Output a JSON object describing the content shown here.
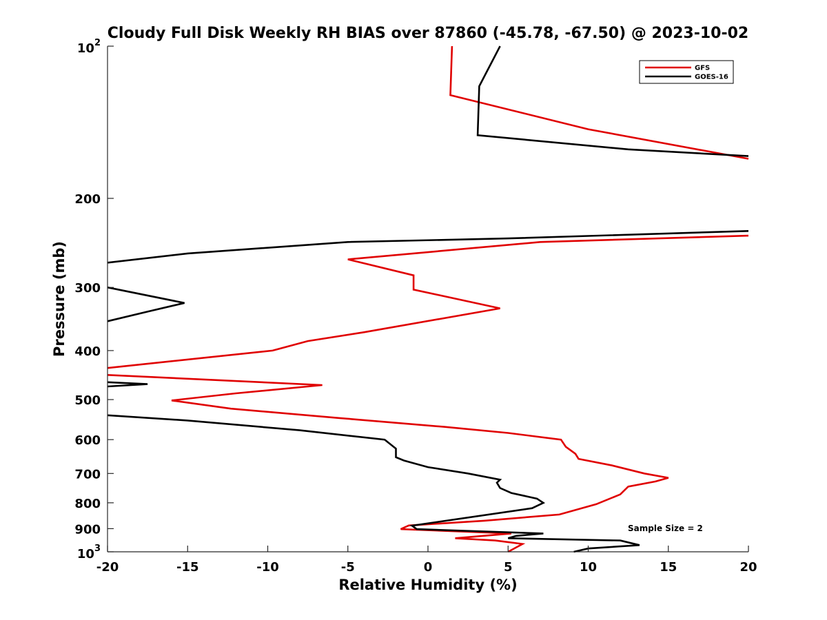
{
  "chart_data": {
    "type": "line",
    "title": "Cloudy Full Disk Weekly RH BIAS over 87860 (-45.78, -67.50) @ 2023-10-02",
    "xlabel": "Relative Humidity (%)",
    "ylabel": "Pressure (mb)",
    "xlim": [
      -20,
      20
    ],
    "ylim": [
      100,
      1000
    ],
    "y_scale": "log",
    "y_reversed": true,
    "grid": false,
    "legend_position": "top-right",
    "x_ticks": [
      -20,
      -15,
      -10,
      -5,
      0,
      5,
      10,
      15,
      20
    ],
    "x_tick_labels": [
      "-20",
      "-15",
      "-10",
      "-5",
      "0",
      "5",
      "10",
      "15",
      "20"
    ],
    "y_ticks": [
      {
        "value": 100,
        "base": "10",
        "exp": "2"
      },
      {
        "value": 200,
        "label": "200"
      },
      {
        "value": 300,
        "label": "300"
      },
      {
        "value": 400,
        "label": "400"
      },
      {
        "value": 500,
        "label": "500"
      },
      {
        "value": 600,
        "label": "600"
      },
      {
        "value": 700,
        "label": "700"
      },
      {
        "value": 800,
        "label": "800"
      },
      {
        "value": 900,
        "label": "900"
      },
      {
        "value": 1000,
        "base": "10",
        "exp": "3"
      }
    ],
    "annotation": "Sample Size = 2",
    "series": [
      {
        "name": "GFS",
        "color": "#e00000",
        "points": [
          [
            1.5,
            100
          ],
          [
            1.4,
            125
          ],
          [
            10,
            146
          ],
          [
            20,
            167
          ],
          [
            null,
            175
          ],
          [
            20,
            237
          ],
          [
            7,
            244
          ],
          [
            -5,
            264
          ],
          [
            -0.9,
            284
          ],
          [
            -0.9,
            303
          ],
          [
            4.5,
            330
          ],
          [
            -4,
            368
          ],
          [
            -7.5,
            383
          ],
          [
            -9.7,
            400
          ],
          [
            -20,
            433
          ],
          [
            null,
            440
          ],
          [
            -20,
            447
          ],
          [
            -6.6,
            468
          ],
          [
            -12,
            486
          ],
          [
            -16,
            502
          ],
          [
            -12.3,
            521
          ],
          [
            -5.5,
            544
          ],
          [
            1,
            566
          ],
          [
            5,
            582
          ],
          [
            8.3,
            600
          ],
          [
            8.6,
            620
          ],
          [
            9.2,
            640
          ],
          [
            9.4,
            655
          ],
          [
            11.5,
            675
          ],
          [
            13.5,
            700
          ],
          [
            15,
            714
          ],
          [
            14.2,
            726
          ],
          [
            12.5,
            743
          ],
          [
            12,
            770
          ],
          [
            10.5,
            805
          ],
          [
            8.2,
            844
          ],
          [
            3.5,
            868
          ],
          [
            -1.2,
            887
          ],
          [
            -1.7,
            902
          ],
          [
            5.2,
            920
          ],
          [
            1.7,
            940
          ],
          [
            4.2,
            950
          ],
          [
            5.9,
            965
          ],
          [
            5,
            1000
          ]
        ]
      },
      {
        "name": "GOES-16",
        "color": "#000000",
        "points": [
          [
            4.5,
            100
          ],
          [
            3.2,
            120
          ],
          [
            3.1,
            150
          ],
          [
            12.5,
            160
          ],
          [
            20,
            165
          ],
          [
            null,
            175
          ],
          [
            20,
            232
          ],
          [
            5,
            240
          ],
          [
            -5,
            244
          ],
          [
            -15,
            257
          ],
          [
            -20,
            268
          ],
          [
            null,
            280
          ],
          [
            -20,
            300
          ],
          [
            -15.2,
            322
          ],
          [
            -17.5,
            335
          ],
          [
            -20,
            350
          ],
          [
            null,
            420
          ],
          [
            -20,
            462
          ],
          [
            -17.5,
            466
          ],
          [
            -20,
            471
          ],
          [
            null,
            510
          ],
          [
            -20,
            537
          ],
          [
            -15,
            550
          ],
          [
            -8,
            575
          ],
          [
            -2.7,
            600
          ],
          [
            -2,
            625
          ],
          [
            -2,
            650
          ],
          [
            -1.5,
            660
          ],
          [
            0,
            680
          ],
          [
            2.5,
            700
          ],
          [
            4.5,
            720
          ],
          [
            4.3,
            730
          ],
          [
            4.5,
            748
          ],
          [
            5.2,
            765
          ],
          [
            6.8,
            785
          ],
          [
            7.2,
            800
          ],
          [
            6.5,
            820
          ],
          [
            -1,
            888
          ],
          [
            -0.7,
            902
          ],
          [
            7.2,
            920
          ],
          [
            5.5,
            930
          ],
          [
            5,
            940
          ],
          [
            12,
            950
          ],
          [
            13.2,
            970
          ],
          [
            10,
            985
          ],
          [
            9.1,
            1000
          ]
        ]
      }
    ]
  }
}
